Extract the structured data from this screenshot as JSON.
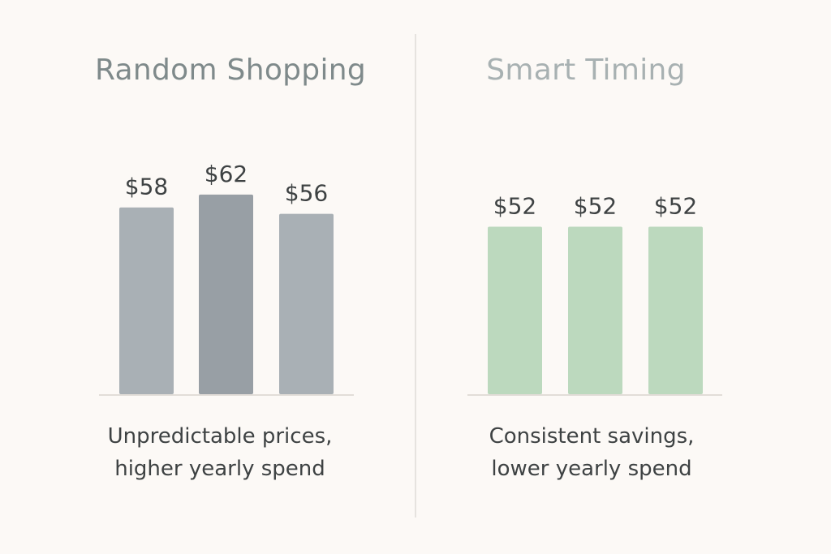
{
  "chart_data": [
    {
      "type": "bar",
      "title": "Random Shopping",
      "categories": [
        "",
        "",
        ""
      ],
      "values": [
        58,
        62,
        56
      ],
      "value_labels": [
        "$58",
        "$62",
        "$56"
      ],
      "caption": [
        "Unpredictable prices,",
        "higher yearly spend"
      ],
      "colors": [
        "#a9b0b5",
        "#989fa5",
        "#a9b0b5"
      ],
      "grid": false
    },
    {
      "type": "bar",
      "title": "Smart Timing",
      "categories": [
        "",
        "",
        ""
      ],
      "values": [
        52,
        52,
        52
      ],
      "value_labels": [
        "$52",
        "$52",
        "$52"
      ],
      "caption": [
        "Consistent savings,",
        "lower yearly spend"
      ],
      "colors": [
        "#bcd9be",
        "#bcd9be",
        "#bcd9be"
      ],
      "grid": false
    }
  ]
}
